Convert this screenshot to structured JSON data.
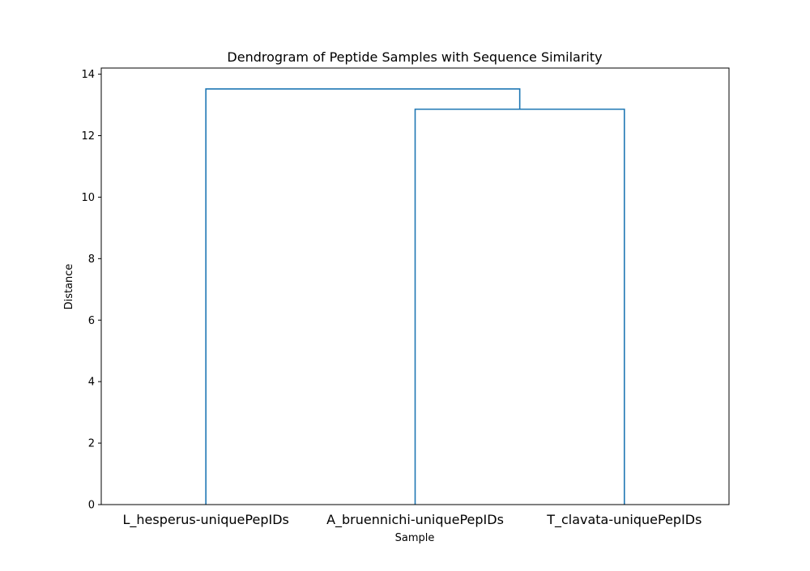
{
  "chart_data": {
    "type": "dendrogram",
    "title": "Dendrogram of Peptide Samples with Sequence Similarity",
    "xlabel": "Sample",
    "ylabel": "Distance",
    "ylim": [
      0,
      14.2
    ],
    "yticks": [
      0,
      2,
      4,
      6,
      8,
      10,
      12,
      14
    ],
    "grid": false,
    "leaves": [
      "L_hesperus-uniquePepIDs",
      "A_bruennichi-uniquePepIDs",
      "T_clavata-uniquePepIDs"
    ],
    "merges": [
      {
        "left": "A_bruennichi-uniquePepIDs",
        "right": "T_clavata-uniquePepIDs",
        "distance": 12.86
      },
      {
        "left": "L_hesperus-uniquePepIDs",
        "right": "cluster-1",
        "distance": 13.52
      }
    ],
    "colors": {
      "link": "#1f77b4",
      "axis": "#000000"
    }
  }
}
